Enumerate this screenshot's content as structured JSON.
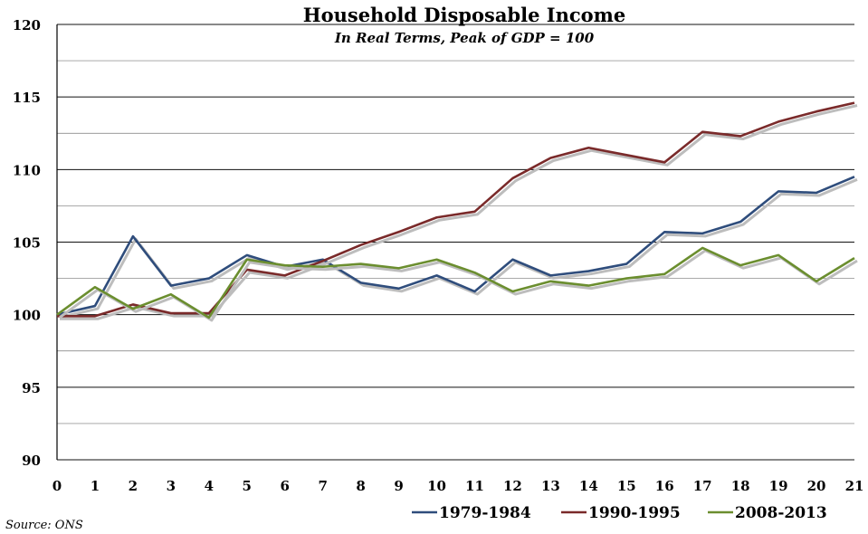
{
  "chart_data": {
    "type": "line",
    "title": "Household Disposable Income",
    "subtitle": "In Real Terms, Peak of GDP = 100",
    "xlabel": "",
    "ylabel": "",
    "x": [
      0,
      1,
      2,
      3,
      4,
      5,
      6,
      7,
      8,
      9,
      10,
      11,
      12,
      13,
      14,
      15,
      16,
      17,
      18,
      19,
      20,
      21
    ],
    "xlim": [
      0,
      21
    ],
    "ylim": [
      90,
      120
    ],
    "yticks": [
      90,
      95,
      100,
      105,
      110,
      115,
      120
    ],
    "grid": true,
    "legend_position": "bottom-right",
    "series": [
      {
        "name": "1979-1984",
        "color": "#2f4d7c",
        "values": [
          100,
          100.6,
          105.4,
          102.0,
          102.5,
          104.1,
          103.3,
          103.8,
          102.2,
          101.8,
          102.7,
          101.6,
          103.8,
          102.7,
          103.0,
          103.5,
          105.7,
          105.6,
          106.4,
          108.5,
          108.4,
          109.5
        ]
      },
      {
        "name": "1990-1995",
        "color": "#7a2a2a",
        "values": [
          99.9,
          99.9,
          100.7,
          100.1,
          100.1,
          103.1,
          102.7,
          103.7,
          104.8,
          105.7,
          106.7,
          107.1,
          109.4,
          110.8,
          111.5,
          111.0,
          110.5,
          112.6,
          112.3,
          113.3,
          114.0,
          114.6
        ]
      },
      {
        "name": "2008-2013",
        "color": "#6b8e2f",
        "values": [
          100,
          101.9,
          100.4,
          101.4,
          99.8,
          103.8,
          103.4,
          103.3,
          103.5,
          103.2,
          103.8,
          102.9,
          101.6,
          102.3,
          102.0,
          102.5,
          102.8,
          104.6,
          103.4,
          104.1,
          102.3,
          103.9
        ]
      }
    ]
  },
  "source": "Source: ONS"
}
